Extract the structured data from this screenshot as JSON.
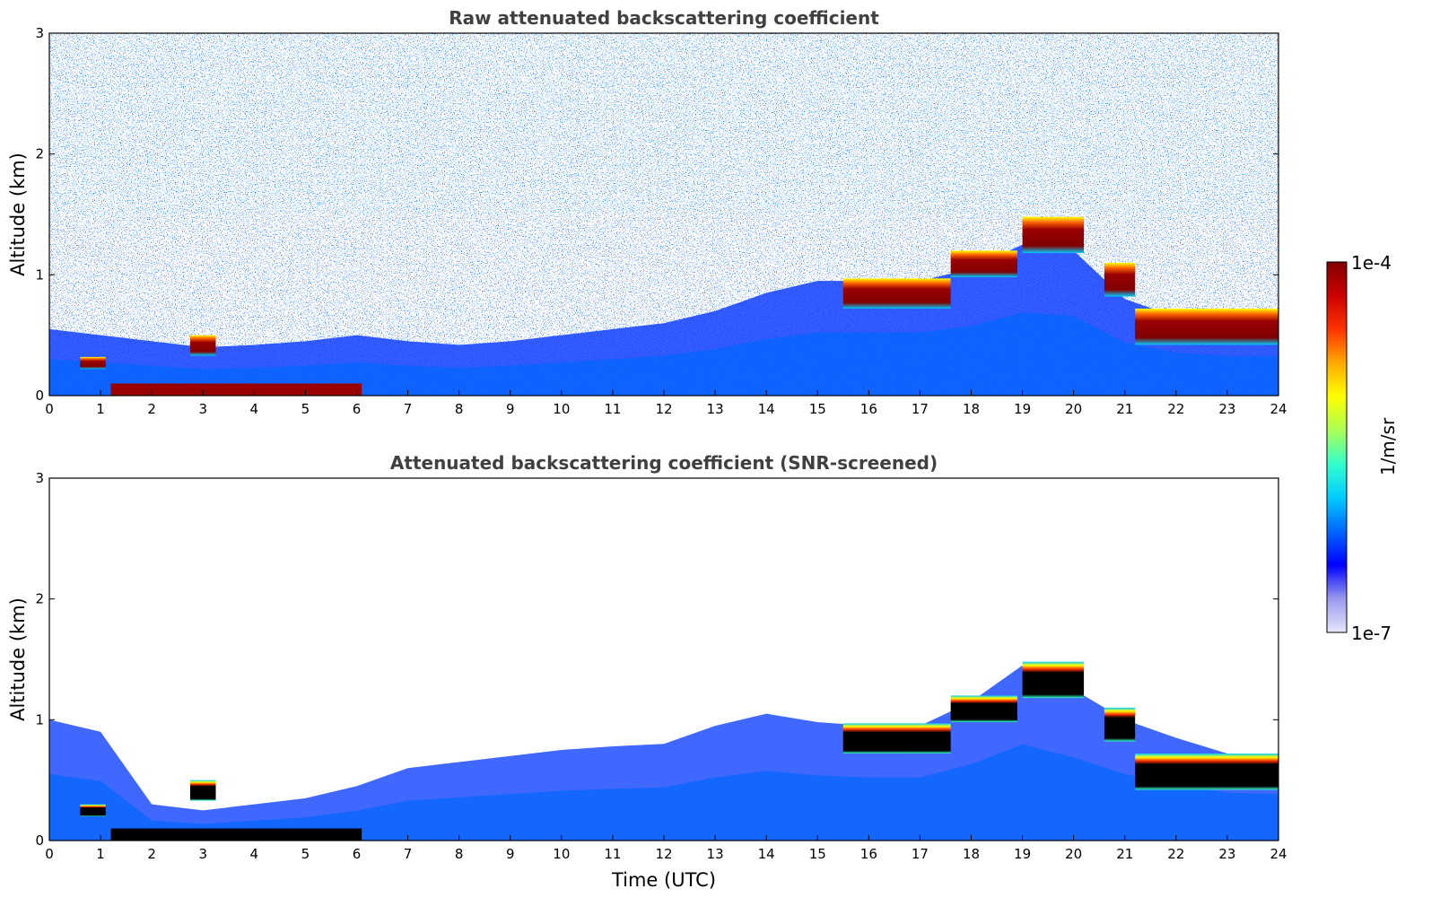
{
  "chart_data": [
    {
      "type": "heatmap",
      "title": "Raw attenuated backscattering coefficient",
      "xlabel": "",
      "ylabel": "Altitude (km)",
      "xlim": [
        0,
        24
      ],
      "ylim": [
        0,
        3
      ],
      "x_ticks": [
        "0",
        "1",
        "2",
        "3",
        "4",
        "5",
        "6",
        "7",
        "8",
        "9",
        "10",
        "11",
        "12",
        "13",
        "14",
        "15",
        "16",
        "17",
        "18",
        "19",
        "20",
        "21",
        "22",
        "23",
        "24"
      ],
      "y_ticks": [
        "0",
        "1",
        "2",
        "3"
      ],
      "features": {
        "surface_layer": {
          "time_range": [
            1.2,
            6.1
          ],
          "altitude": [
            0.0,
            0.1
          ],
          "level": "high"
        },
        "boundary_layer_top_km": [
          [
            0,
            0.55
          ],
          [
            1,
            0.5
          ],
          [
            2,
            0.45
          ],
          [
            3,
            0.4
          ],
          [
            4,
            0.42
          ],
          [
            5,
            0.45
          ],
          [
            6,
            0.5
          ],
          [
            7,
            0.45
          ],
          [
            8,
            0.42
          ],
          [
            9,
            0.45
          ],
          [
            10,
            0.5
          ],
          [
            11,
            0.55
          ],
          [
            12,
            0.6
          ],
          [
            13,
            0.7
          ],
          [
            14,
            0.85
          ],
          [
            15,
            0.95
          ],
          [
            16,
            0.95
          ],
          [
            17,
            0.95
          ],
          [
            18,
            1.05
          ],
          [
            19,
            1.25
          ],
          [
            20,
            1.2
          ],
          [
            21,
            0.8
          ],
          [
            22,
            0.65
          ],
          [
            23,
            0.6
          ],
          [
            24,
            0.6
          ]
        ],
        "cloud_segments": [
          {
            "time": [
              0.6,
              1.1
            ],
            "base_km": 0.22,
            "top_km": 0.32
          },
          {
            "time": [
              2.75,
              3.25
            ],
            "base_km": 0.33,
            "top_km": 0.5
          },
          {
            "time": [
              15.5,
              17.6
            ],
            "base_km": 0.72,
            "top_km": 0.97
          },
          {
            "time": [
              17.6,
              18.9
            ],
            "base_km": 0.98,
            "top_km": 1.2
          },
          {
            "time": [
              19.0,
              20.2
            ],
            "base_km": 1.18,
            "top_km": 1.48
          },
          {
            "time": [
              20.6,
              21.2
            ],
            "base_km": 0.82,
            "top_km": 1.1
          },
          {
            "time": [
              21.2,
              24.0
            ],
            "base_km": 0.42,
            "top_km": 0.72
          }
        ]
      }
    },
    {
      "type": "heatmap",
      "title": "Attenuated backscattering coefficient (SNR-screened)",
      "xlabel": "Time (UTC)",
      "ylabel": "Altitude (km)",
      "xlim": [
        0,
        24
      ],
      "ylim": [
        0,
        3
      ],
      "x_ticks": [
        "0",
        "1",
        "2",
        "3",
        "4",
        "5",
        "6",
        "7",
        "8",
        "9",
        "10",
        "11",
        "12",
        "13",
        "14",
        "15",
        "16",
        "17",
        "18",
        "19",
        "20",
        "21",
        "22",
        "23",
        "24"
      ],
      "y_ticks": [
        "0",
        "1",
        "2",
        "3"
      ],
      "features": {
        "surface_layer": {
          "time_range": [
            1.2,
            6.1
          ],
          "altitude": [
            0.0,
            0.1
          ],
          "level": "saturated"
        },
        "boundary_layer_top_km": [
          [
            0,
            1.0
          ],
          [
            1,
            0.9
          ],
          [
            2,
            0.3
          ],
          [
            3,
            0.25
          ],
          [
            4,
            0.3
          ],
          [
            5,
            0.35
          ],
          [
            6,
            0.45
          ],
          [
            7,
            0.6
          ],
          [
            8,
            0.65
          ],
          [
            9,
            0.7
          ],
          [
            10,
            0.75
          ],
          [
            11,
            0.78
          ],
          [
            12,
            0.8
          ],
          [
            13,
            0.95
          ],
          [
            14,
            1.05
          ],
          [
            15,
            0.98
          ],
          [
            16,
            0.95
          ],
          [
            17,
            0.95
          ],
          [
            18,
            1.15
          ],
          [
            19,
            1.45
          ],
          [
            20,
            1.25
          ],
          [
            21,
            1.0
          ],
          [
            22,
            0.85
          ],
          [
            23,
            0.72
          ],
          [
            24,
            0.7
          ]
        ],
        "cloud_segments": [
          {
            "time": [
              0.6,
              1.1
            ],
            "base_km": 0.2,
            "top_km": 0.3
          },
          {
            "time": [
              2.75,
              3.25
            ],
            "base_km": 0.33,
            "top_km": 0.5
          },
          {
            "time": [
              15.5,
              17.6
            ],
            "base_km": 0.72,
            "top_km": 0.97
          },
          {
            "time": [
              17.6,
              18.9
            ],
            "base_km": 0.98,
            "top_km": 1.2
          },
          {
            "time": [
              19.0,
              20.2
            ],
            "base_km": 1.18,
            "top_km": 1.48
          },
          {
            "time": [
              20.6,
              21.2
            ],
            "base_km": 0.82,
            "top_km": 1.1
          },
          {
            "time": [
              21.2,
              24.0
            ],
            "base_km": 0.42,
            "top_km": 0.72
          }
        ]
      }
    }
  ],
  "colorbar": {
    "label": "1/m/sr",
    "max_label": "1e-4",
    "min_label": "1e-7",
    "colormap": [
      "#e6e6fa",
      "#9999ee",
      "#0000ff",
      "#0066ff",
      "#00ccff",
      "#33ffcc",
      "#aaff55",
      "#ffff00",
      "#ffaa00",
      "#ff3300",
      "#cc0000",
      "#800000"
    ]
  },
  "colors": {
    "title": "#404040",
    "cloud_core_screened": "#000000",
    "background": "#ffffff"
  }
}
